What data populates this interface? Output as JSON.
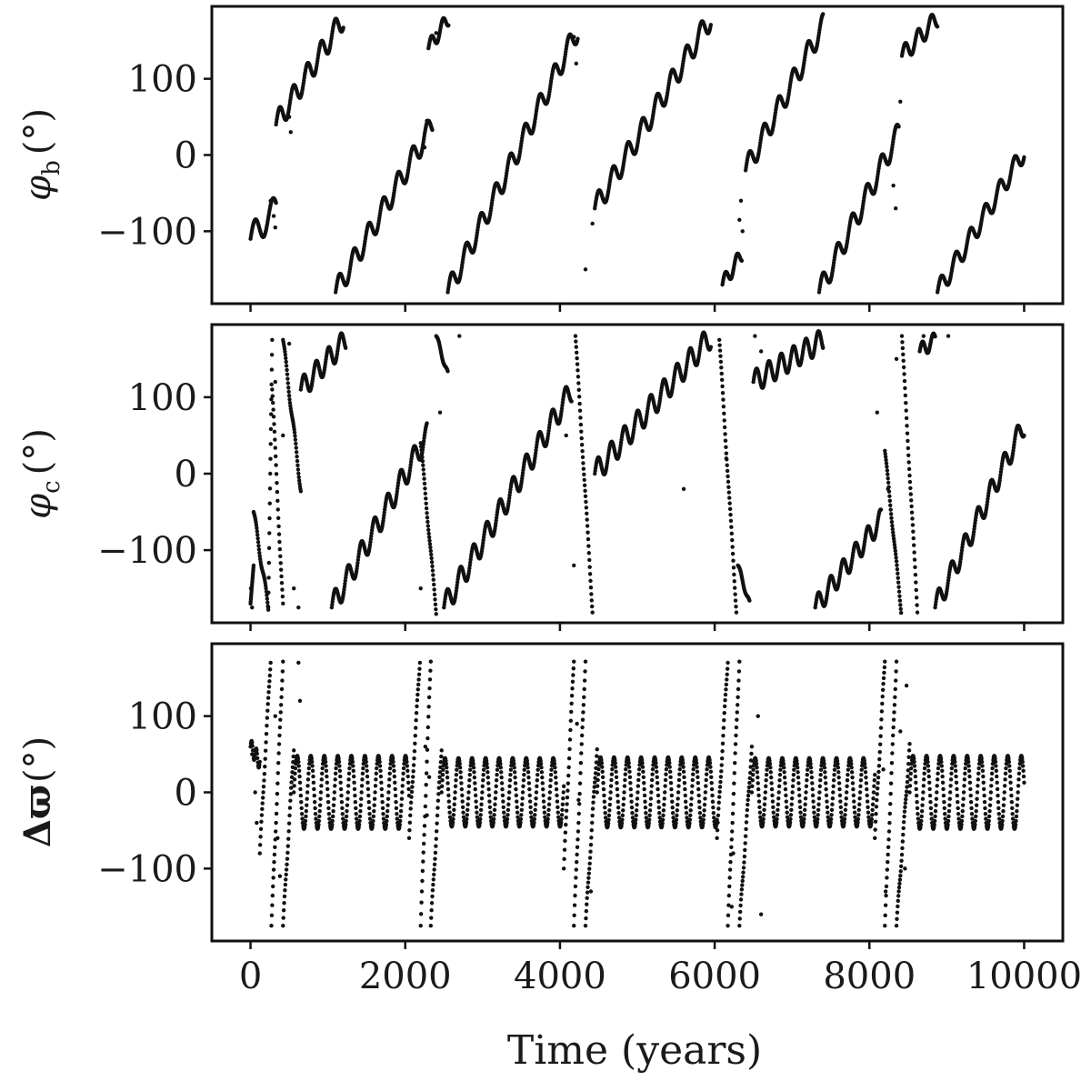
{
  "chart_data": {
    "type": "scatter",
    "xlabel": "Time (years)",
    "xlim": [
      -500,
      10500
    ],
    "x_ticks": [
      0,
      2000,
      4000,
      6000,
      8000,
      10000
    ],
    "x_tick_labels": [
      "0",
      "2000",
      "4000",
      "6000",
      "8000",
      "10000"
    ],
    "marker_color": "#111111",
    "panels": [
      {
        "id": "phi_b",
        "ylabel": "φb (°)",
        "ylabel_symbol": "φ",
        "ylabel_sub": "b",
        "ylabel_unit": "(°)",
        "ylim": [
          -195,
          195
        ],
        "y_ticks": [
          100,
          0,
          -100
        ],
        "y_tick_labels": [
          "100",
          "0",
          "−100"
        ],
        "series": [
          {
            "segments": [
              {
                "x0": 0,
                "y0": -110,
                "x1": 330,
                "y1": -70,
                "amp": 18,
                "period": 230
              },
              {
                "x0": 330,
                "y0": 40,
                "x1": 1200,
                "y1": 180,
                "amp": 15,
                "period": 180
              },
              {
                "x0": 1100,
                "y0": -180,
                "x1": 2350,
                "y1": 40,
                "amp": 15,
                "period": 190
              },
              {
                "x0": 2300,
                "y0": 140,
                "x1": 2560,
                "y1": 180,
                "amp": 10,
                "period": 150
              },
              {
                "x0": 2550,
                "y0": -180,
                "x1": 4230,
                "y1": 165,
                "amp": 15,
                "period": 190
              },
              {
                "x0": 4450,
                "y0": -70,
                "x1": 5950,
                "y1": 180,
                "amp": 15,
                "period": 190
              },
              {
                "x0": 6100,
                "y0": -170,
                "x1": 6350,
                "y1": -130,
                "amp": 10,
                "period": 150
              },
              {
                "x0": 6400,
                "y0": -20,
                "x1": 7400,
                "y1": 170,
                "amp": 15,
                "period": 190
              },
              {
                "x0": 7350,
                "y0": -180,
                "x1": 8380,
                "y1": 30,
                "amp": 15,
                "period": 190
              },
              {
                "x0": 8420,
                "y0": 130,
                "x1": 8880,
                "y1": 180,
                "amp": 12,
                "period": 170
              },
              {
                "x0": 8880,
                "y0": -180,
                "x1": 10000,
                "y1": 5,
                "amp": 13,
                "period": 190
              }
            ],
            "scatter": [
              [
                260,
                -60
              ],
              [
                300,
                -80
              ],
              [
                320,
                -95
              ],
              [
                500,
                50
              ],
              [
                520,
                30
              ],
              [
                4330,
                -150
              ],
              [
                4420,
                -90
              ],
              [
                6320,
                -85
              ],
              [
                6340,
                -60
              ],
              [
                6360,
                -100
              ],
              [
                8310,
                -40
              ],
              [
                8340,
                -70
              ],
              [
                2250,
                10
              ],
              [
                2280,
                45
              ],
              [
                2400,
                160
              ],
              [
                4180,
                155
              ],
              [
                4210,
                120
              ],
              [
                8400,
                70
              ]
            ]
          }
        ]
      },
      {
        "id": "phi_c",
        "ylabel": "φc (°)",
        "ylabel_symbol": "φ",
        "ylabel_sub": "c",
        "ylabel_unit": "(°)",
        "ylim": [
          -195,
          195
        ],
        "y_ticks": [
          100,
          0,
          -100
        ],
        "y_tick_labels": [
          "100",
          "0",
          "−100"
        ],
        "series": [
          {
            "segments": [
              {
                "x0": 0,
                "y0": -170,
                "x1": 40,
                "y1": -120,
                "amp": 0,
                "period": 100
              },
              {
                "x0": 40,
                "y0": -50,
                "x1": 230,
                "y1": -175,
                "amp": 6,
                "period": 120
              },
              {
                "x0": 230,
                "y0": -175,
                "x1": 280,
                "y1": 175,
                "amp": 0,
                "period": 100
              },
              {
                "x0": 280,
                "y0": 110,
                "x1": 420,
                "y1": -175,
                "amp": 6,
                "period": 120
              },
              {
                "x0": 420,
                "y0": 175,
                "x1": 650,
                "y1": -20,
                "amp": 6,
                "period": 120
              },
              {
                "x0": 650,
                "y0": 110,
                "x1": 1230,
                "y1": 175,
                "amp": 15,
                "period": 160
              },
              {
                "x0": 1050,
                "y0": -175,
                "x1": 2280,
                "y1": 50,
                "amp": 16,
                "period": 170
              },
              {
                "x0": 2200,
                "y0": 40,
                "x1": 2400,
                "y1": -180,
                "amp": 4,
                "period": 120
              },
              {
                "x0": 2400,
                "y0": 180,
                "x1": 2550,
                "y1": 130,
                "amp": 4,
                "period": 120
              },
              {
                "x0": 2500,
                "y0": -175,
                "x1": 4150,
                "y1": 110,
                "amp": 16,
                "period": 170
              },
              {
                "x0": 4200,
                "y0": 180,
                "x1": 4420,
                "y1": -178,
                "amp": 4,
                "period": 120
              },
              {
                "x0": 4450,
                "y0": 0,
                "x1": 5950,
                "y1": 180,
                "amp": 16,
                "period": 170
              },
              {
                "x0": 6060,
                "y0": 175,
                "x1": 6280,
                "y1": -178,
                "amp": 4,
                "period": 120
              },
              {
                "x0": 6300,
                "y0": -120,
                "x1": 6450,
                "y1": -170,
                "amp": 4,
                "period": 120
              },
              {
                "x0": 6500,
                "y0": 120,
                "x1": 7400,
                "y1": 175,
                "amp": 15,
                "period": 160
              },
              {
                "x0": 7300,
                "y0": -175,
                "x1": 8150,
                "y1": -60,
                "amp": 14,
                "period": 160
              },
              {
                "x0": 8200,
                "y0": 30,
                "x1": 8410,
                "y1": -178,
                "amp": 4,
                "period": 120
              },
              {
                "x0": 8420,
                "y0": 180,
                "x1": 8620,
                "y1": -178,
                "amp": 4,
                "period": 120
              },
              {
                "x0": 8650,
                "y0": 160,
                "x1": 8850,
                "y1": 175,
                "amp": 10,
                "period": 140
              },
              {
                "x0": 8850,
                "y0": -175,
                "x1": 10000,
                "y1": 65,
                "amp": 15,
                "period": 170
              }
            ],
            "scatter": [
              [
                5,
                -150
              ],
              [
                20,
                -175
              ],
              [
                320,
                120
              ],
              [
                420,
                50
              ],
              [
                500,
                170
              ],
              [
                560,
                -150
              ],
              [
                620,
                -175
              ],
              [
                2200,
                -150
              ],
              [
                2450,
                80
              ],
              [
                2700,
                180
              ],
              [
                4080,
                50
              ],
              [
                4180,
                -120
              ],
              [
                5600,
                -20
              ],
              [
                6150,
                20
              ],
              [
                6520,
                180
              ],
              [
                6600,
                160
              ],
              [
                8100,
                80
              ],
              [
                8240,
                -20
              ],
              [
                8350,
                150
              ],
              [
                8700,
                180
              ],
              [
                9020,
                180
              ]
            ]
          }
        ]
      },
      {
        "id": "delta_varpi",
        "ylabel": "Δϖ(°)",
        "ylabel_symbol": "Δϖ",
        "ylabel_sub": "",
        "ylabel_unit": "(°)",
        "ylim": [
          -195,
          195
        ],
        "y_ticks": [
          100,
          0,
          -100
        ],
        "y_tick_labels": [
          "100",
          "0",
          "−100"
        ],
        "series": [
          {
            "segments": [
              {
                "x0": 0,
                "y0": 60,
                "x1": 120,
                "y1": 40,
                "amp": 10,
                "period": 60
              },
              {
                "x0": 120,
                "y0": -80,
                "x1": 260,
                "y1": 175,
                "amp": 5,
                "period": 80
              },
              {
                "x0": 270,
                "y0": -175,
                "x1": 420,
                "y1": 175,
                "amp": 5,
                "period": 80
              },
              {
                "x0": 420,
                "y0": -175,
                "x1": 560,
                "y1": 60,
                "amp": 5,
                "period": 80
              },
              {
                "x0": 560,
                "y0": -60,
                "x1": 2050,
                "y1": 0,
                "amp": 48,
                "period": 175,
                "osc": true
              },
              {
                "x0": 2050,
                "y0": -60,
                "x1": 2190,
                "y1": 175,
                "amp": 5,
                "period": 80
              },
              {
                "x0": 2200,
                "y0": -175,
                "x1": 2330,
                "y1": 175,
                "amp": 5,
                "period": 80
              },
              {
                "x0": 2330,
                "y0": -175,
                "x1": 2470,
                "y1": 60,
                "amp": 5,
                "period": 80
              },
              {
                "x0": 2470,
                "y0": -60,
                "x1": 4050,
                "y1": 0,
                "amp": 45,
                "period": 175,
                "osc": true
              },
              {
                "x0": 4050,
                "y0": -100,
                "x1": 4180,
                "y1": 175,
                "amp": 5,
                "period": 80
              },
              {
                "x0": 4180,
                "y0": -175,
                "x1": 4330,
                "y1": 175,
                "amp": 5,
                "period": 80
              },
              {
                "x0": 4330,
                "y0": -175,
                "x1": 4480,
                "y1": 60,
                "amp": 5,
                "period": 80
              },
              {
                "x0": 4480,
                "y0": -60,
                "x1": 6030,
                "y1": 0,
                "amp": 46,
                "period": 175,
                "osc": true
              },
              {
                "x0": 6030,
                "y0": -60,
                "x1": 6170,
                "y1": 175,
                "amp": 5,
                "period": 80
              },
              {
                "x0": 6170,
                "y0": -175,
                "x1": 6320,
                "y1": 175,
                "amp": 5,
                "period": 80
              },
              {
                "x0": 6320,
                "y0": -175,
                "x1": 6480,
                "y1": 60,
                "amp": 5,
                "period": 80
              },
              {
                "x0": 6480,
                "y0": -60,
                "x1": 8070,
                "y1": 0,
                "amp": 45,
                "period": 175,
                "osc": true
              },
              {
                "x0": 8070,
                "y0": -60,
                "x1": 8200,
                "y1": 175,
                "amp": 5,
                "period": 80
              },
              {
                "x0": 8200,
                "y0": -175,
                "x1": 8350,
                "y1": 175,
                "amp": 5,
                "period": 80
              },
              {
                "x0": 8350,
                "y0": -175,
                "x1": 8520,
                "y1": 60,
                "amp": 5,
                "period": 80
              },
              {
                "x0": 8520,
                "y0": -60,
                "x1": 10000,
                "y1": 0,
                "amp": 48,
                "period": 175,
                "osc": true
              }
            ],
            "scatter": [
              [
                20,
                50
              ],
              [
                60,
                0
              ],
              [
                80,
                -40
              ],
              [
                320,
                100
              ],
              [
                350,
                -60
              ],
              [
                380,
                -110
              ],
              [
                620,
                170
              ],
              [
                640,
                120
              ],
              [
                2260,
                60
              ],
              [
                2280,
                -30
              ],
              [
                2310,
                20
              ],
              [
                4220,
                90
              ],
              [
                4240,
                -10
              ],
              [
                4400,
                -130
              ],
              [
                6220,
                -150
              ],
              [
                6240,
                -80
              ],
              [
                6560,
                100
              ],
              [
                6600,
                -160
              ],
              [
                8180,
                30
              ],
              [
                8210,
                -130
              ],
              [
                8400,
                80
              ],
              [
                8460,
                -100
              ],
              [
                8480,
                140
              ]
            ]
          }
        ]
      }
    ]
  }
}
